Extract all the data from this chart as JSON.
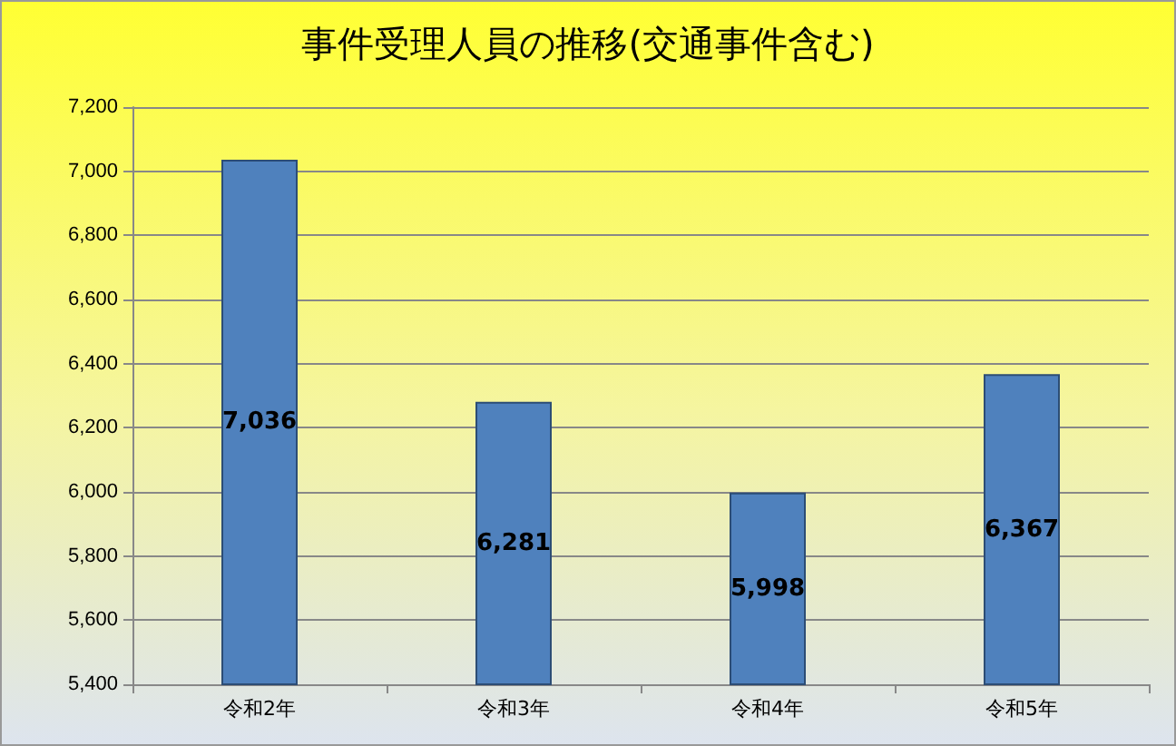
{
  "chart_data": {
    "type": "bar",
    "title": "事件受理人員の推移(交通事件含む)",
    "categories": [
      "令和2年",
      "令和3年",
      "令和4年",
      "令和5年"
    ],
    "values": [
      7036,
      6281,
      5998,
      6367
    ],
    "value_labels": [
      "7,036",
      "6,281",
      "5,998",
      "6,367"
    ],
    "color": "#4f81bd",
    "ylim": [
      5400,
      7200
    ],
    "yticks": [
      {
        "value": 5400,
        "label": "5,400"
      },
      {
        "value": 5600,
        "label": "5,600"
      },
      {
        "value": 5800,
        "label": "5,800"
      },
      {
        "value": 6000,
        "label": "6,000"
      },
      {
        "value": 6200,
        "label": "6,200"
      },
      {
        "value": 6400,
        "label": "6,400"
      },
      {
        "value": 6600,
        "label": "6,600"
      },
      {
        "value": 6800,
        "label": "6,800"
      },
      {
        "value": 7000,
        "label": "7,000"
      },
      {
        "value": 7200,
        "label": "7,200"
      }
    ],
    "grid": true
  }
}
